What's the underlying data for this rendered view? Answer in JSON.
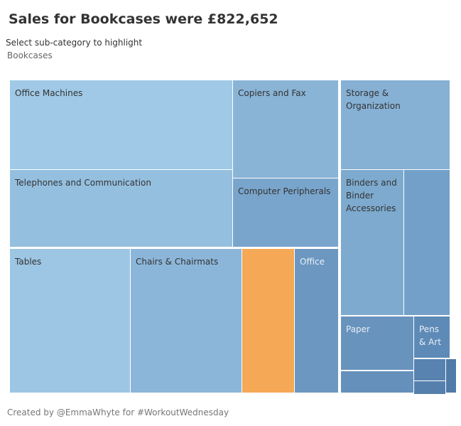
{
  "title": "Sales for Bookcases were £822,652",
  "filter_label": "Select sub-category to highlight",
  "filter_value": "Bookcases",
  "footer": "Created by @EmmaWhyte for #WorkoutWednesday",
  "highlight_color": "#f5a855",
  "tiles": [
    {
      "label": "Office Machines",
      "color": "#9fc9e6"
    },
    {
      "label": "Copiers and Fax",
      "color": "#8ab4d6"
    },
    {
      "label": "Telephones and Communication",
      "color": "#94bfdf"
    },
    {
      "label": "Computer Peripherals",
      "color": "#79a5cc"
    },
    {
      "label": "Tables",
      "color": "#9dc6e4"
    },
    {
      "label": "Chairs & Chairmats",
      "color": "#8cb6d9"
    },
    {
      "label": "",
      "color": "#f5a855"
    },
    {
      "label": "Office",
      "color": "#6c97c1"
    },
    {
      "label": "Storage & Organization",
      "color": "#86b0d4"
    },
    {
      "label": "Binders and Binder Accessories",
      "color": "#7daace"
    },
    {
      "label": "",
      "color": "#72a0c8"
    },
    {
      "label": "Paper",
      "color": "#6893bd"
    },
    {
      "label": "Pens & Art",
      "color": "#5e8ab7"
    },
    {
      "label": "",
      "color": "#6590bb"
    },
    {
      "label": "",
      "color": "#5882b0"
    },
    {
      "label": "",
      "color": "#5580ad"
    },
    {
      "label": "",
      "color": "#507ba9"
    }
  ]
}
